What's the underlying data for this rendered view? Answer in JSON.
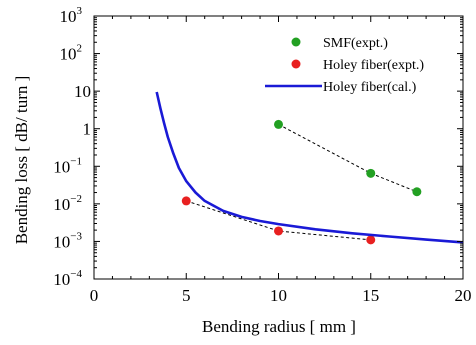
{
  "chart_data": {
    "type": "scatter",
    "xlabel": "Bending radius [ mm ]",
    "ylabel": "Bending loss [ dB/ turn ]",
    "xlim": [
      0,
      20
    ],
    "ylim": [
      0.0001,
      1000
    ],
    "yscale": "log",
    "grid": false,
    "legend_position": "top-right",
    "x_ticks": [
      {
        "value": 0,
        "label": "0"
      },
      {
        "value": 5,
        "label": "5"
      },
      {
        "value": 10,
        "label": "10"
      },
      {
        "value": 15,
        "label": "15"
      },
      {
        "value": 20,
        "label": "20"
      }
    ],
    "y_ticks": [
      {
        "value": 0.0001,
        "base": "10",
        "exp": "−4"
      },
      {
        "value": 0.001,
        "base": "10",
        "exp": "−3"
      },
      {
        "value": 0.01,
        "base": "10",
        "exp": "−2"
      },
      {
        "value": 0.1,
        "base": "10",
        "exp": "−1"
      },
      {
        "value": 1,
        "base": "1",
        "exp": ""
      },
      {
        "value": 10,
        "base": "10",
        "exp": ""
      },
      {
        "value": 100,
        "base": "10",
        "exp": "2"
      },
      {
        "value": 1000,
        "base": "10",
        "exp": "3"
      }
    ],
    "series": [
      {
        "name": "SMF(expt.)",
        "kind": "scatter",
        "color": "#22a022",
        "points": [
          {
            "x": 10,
            "y": 1.3
          },
          {
            "x": 15,
            "y": 0.065
          },
          {
            "x": 17.5,
            "y": 0.021
          }
        ]
      },
      {
        "name": "Holey fiber(expt.)",
        "kind": "scatter",
        "color": "#e82020",
        "points": [
          {
            "x": 5,
            "y": 0.012
          },
          {
            "x": 10,
            "y": 0.0019
          },
          {
            "x": 15,
            "y": 0.0011
          }
        ]
      },
      {
        "name": "Holey fiber(cal.)",
        "kind": "line",
        "color": "#1a1ad6",
        "points": [
          {
            "x": 3.4,
            "y": 9.5
          },
          {
            "x": 3.6,
            "y": 3.5
          },
          {
            "x": 3.8,
            "y": 1.4
          },
          {
            "x": 4.0,
            "y": 0.6
          },
          {
            "x": 4.3,
            "y": 0.22
          },
          {
            "x": 4.6,
            "y": 0.09
          },
          {
            "x": 5.0,
            "y": 0.04
          },
          {
            "x": 5.5,
            "y": 0.02
          },
          {
            "x": 6.0,
            "y": 0.012
          },
          {
            "x": 7.0,
            "y": 0.0065
          },
          {
            "x": 8.0,
            "y": 0.0045
          },
          {
            "x": 9.0,
            "y": 0.0035
          },
          {
            "x": 10.0,
            "y": 0.0029
          },
          {
            "x": 12.0,
            "y": 0.0021
          },
          {
            "x": 14.0,
            "y": 0.00165
          },
          {
            "x": 16.0,
            "y": 0.00135
          },
          {
            "x": 18.0,
            "y": 0.00112
          },
          {
            "x": 20.0,
            "y": 0.00094
          }
        ]
      }
    ]
  }
}
